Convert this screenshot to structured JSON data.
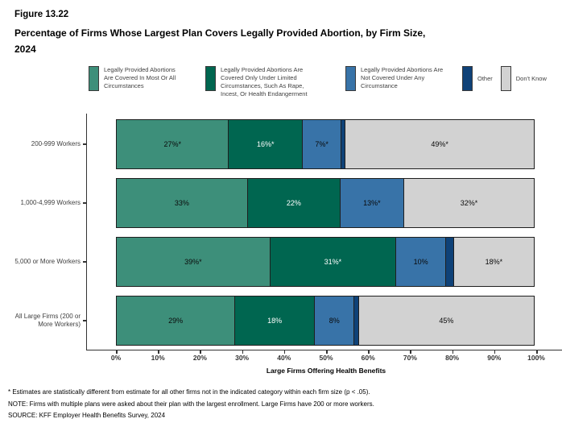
{
  "title": {
    "figure_label": "Figure 13.22",
    "line1": "Percentage of Firms Whose Largest Plan Covers Legally Provided Abortion, by Firm Size,",
    "line2": "2024"
  },
  "colors": {
    "covered_most": "#3D8F7A",
    "covered_limited": "#006650",
    "not_covered": "#3873A8",
    "other": "#0F4278",
    "dont_know": "#D2D2D2",
    "bar_border": "#1F1F1F",
    "axis": "#333333"
  },
  "legend": [
    {
      "label": "Legally Provided Abortions Are Covered In Most Or All Circumstances",
      "color": "#3D8F7A"
    },
    {
      "label": "Legally Provided Abortions Are Covered Only Under Limited Circumstances, Such As Rape, Incest, Or Health Endangerment",
      "color": "#006650"
    },
    {
      "label": "Legally Provided Abortions Are Not Covered Under Any Circumstance",
      "color": "#3873A8"
    },
    {
      "label": "Other",
      "color": "#0F4278"
    },
    {
      "label": "Don't Know",
      "color": "#D2D2D2"
    }
  ],
  "chart_data": {
    "type": "bar",
    "stacked": true,
    "orientation": "horizontal",
    "title": "Percentage of Firms Whose Largest Plan Covers Legally Provided Abortion, by Firm Size, 2024",
    "xlabel": "Large Firms Offering Health Benefits",
    "ylabel": "",
    "xlim": [
      0,
      100
    ],
    "grid": false,
    "legend_position": "top",
    "categories": [
      "200-999 Workers",
      "1,000-4,999 Workers",
      "5,000 or More Workers",
      "All Large Firms (200 or More Workers)"
    ],
    "series": [
      {
        "name": "Legally Provided Abortions Are Covered In Most Or All Circumstances",
        "color": "#3D8F7A",
        "text_color": "#0a0a0a",
        "values": [
          27,
          33,
          39,
          29
        ],
        "labels": [
          "27%*",
          "33%",
          "39%*",
          "29%"
        ]
      },
      {
        "name": "Legally Provided Abortions Are Covered Only Under Limited Circumstances, Such As Rape, Incest, Or Health Endangerment",
        "color": "#006650",
        "text_color": "#ffffff",
        "values": [
          16,
          22,
          31,
          18
        ],
        "labels": [
          "16%*",
          "22%",
          "31%*",
          "18%"
        ]
      },
      {
        "name": "Legally Provided Abortions Are Not Covered Under Any Circumstance",
        "color": "#3873A8",
        "text_color": "#0a0a0a",
        "values": [
          7,
          13,
          10,
          8
        ],
        "labels": [
          "7%*",
          "13%*",
          "10%",
          "8%"
        ]
      },
      {
        "name": "Other",
        "color": "#0F4278",
        "text_color": "#ffffff",
        "values": [
          1,
          0,
          2,
          1
        ],
        "labels": [
          "",
          "",
          "",
          ""
        ]
      },
      {
        "name": "Don't Know",
        "color": "#D2D2D2",
        "text_color": "#0a0a0a",
        "values": [
          49,
          32,
          18,
          45
        ],
        "labels": [
          "49%*",
          "32%*",
          "18%*",
          "45%"
        ]
      }
    ],
    "xticks": [
      "0%",
      "10%",
      "20%",
      "30%",
      "40%",
      "50%",
      "60%",
      "70%",
      "80%",
      "90%",
      "100%"
    ]
  },
  "footnotes": [
    "* Estimates are statistically different from estimate for all other firms not in the indicated category within each firm size (p < .05).",
    "NOTE: Firms with multiple plans were asked about their plan with the largest enrollment.  Large Firms have 200 or more workers.",
    "SOURCE: KFF Employer Health Benefits Survey, 2024"
  ]
}
